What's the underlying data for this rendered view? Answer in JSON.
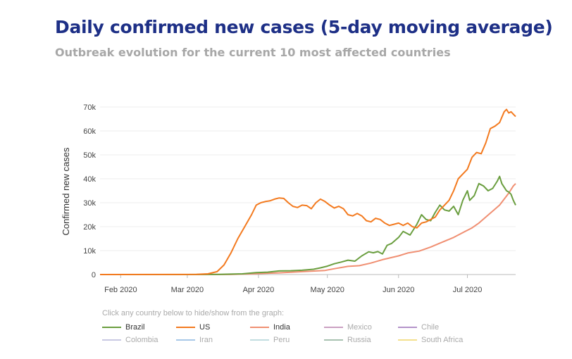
{
  "title": "Daily confirmed new cases (5-day moving average)",
  "subtitle": "Outbreak evolution for the current 10 most affected countries",
  "hint": "Click any country below to hide/show from the graph:",
  "chart_data": {
    "type": "line",
    "ylabel": "Confirmed new cases",
    "xlabel": "",
    "ylim": [
      0,
      70000
    ],
    "y_ticks": [
      "0",
      "10k",
      "20k",
      "30k",
      "40k",
      "50k",
      "60k",
      "70k"
    ],
    "x_ticks": [
      "Feb 2020",
      "Mar 2020",
      "Apr 2020",
      "May 2020",
      "Jun 2020",
      "Jul 2020"
    ],
    "x_range": [
      "2020-01-23",
      "2020-07-22"
    ],
    "grid": true,
    "series": [
      {
        "name": "Brazil",
        "color": "#6a9e3f",
        "points": [
          [
            "2020-01-23",
            0
          ],
          [
            "2020-03-01",
            0
          ],
          [
            "2020-03-15",
            50
          ],
          [
            "2020-03-25",
            300
          ],
          [
            "2020-03-31",
            800
          ],
          [
            "2020-04-05",
            1000
          ],
          [
            "2020-04-10",
            1500
          ],
          [
            "2020-04-15",
            1600
          ],
          [
            "2020-04-20",
            1800
          ],
          [
            "2020-04-25",
            2200
          ],
          [
            "2020-04-28",
            2800
          ],
          [
            "2020-05-01",
            3500
          ],
          [
            "2020-05-04",
            4500
          ],
          [
            "2020-05-07",
            5200
          ],
          [
            "2020-05-10",
            6000
          ],
          [
            "2020-05-13",
            5600
          ],
          [
            "2020-05-16",
            7800
          ],
          [
            "2020-05-19",
            9500
          ],
          [
            "2020-05-21",
            9100
          ],
          [
            "2020-05-23",
            9600
          ],
          [
            "2020-05-25",
            8600
          ],
          [
            "2020-05-27",
            12200
          ],
          [
            "2020-05-29",
            13000
          ],
          [
            "2020-06-01",
            15500
          ],
          [
            "2020-06-03",
            18000
          ],
          [
            "2020-06-06",
            16500
          ],
          [
            "2020-06-09",
            21000
          ],
          [
            "2020-06-11",
            25000
          ],
          [
            "2020-06-13",
            23000
          ],
          [
            "2020-06-15",
            22500
          ],
          [
            "2020-06-17",
            26000
          ],
          [
            "2020-06-19",
            29000
          ],
          [
            "2020-06-21",
            27000
          ],
          [
            "2020-06-23",
            26500
          ],
          [
            "2020-06-25",
            28500
          ],
          [
            "2020-06-27",
            25000
          ],
          [
            "2020-06-29",
            31000
          ],
          [
            "2020-07-01",
            35000
          ],
          [
            "2020-07-02",
            31000
          ],
          [
            "2020-07-04",
            33000
          ],
          [
            "2020-07-06",
            38000
          ],
          [
            "2020-07-08",
            37000
          ],
          [
            "2020-07-10",
            35000
          ],
          [
            "2020-07-12",
            36000
          ],
          [
            "2020-07-14",
            39000
          ],
          [
            "2020-07-15",
            41000
          ],
          [
            "2020-07-16",
            38000
          ],
          [
            "2020-07-17",
            36500
          ],
          [
            "2020-07-18",
            35000
          ],
          [
            "2020-07-19",
            34500
          ],
          [
            "2020-07-20",
            33500
          ],
          [
            "2020-07-21",
            31000
          ],
          [
            "2020-07-22",
            29000
          ]
        ]
      },
      {
        "name": "US",
        "color": "#f37a1f",
        "points": [
          [
            "2020-01-23",
            0
          ],
          [
            "2020-03-05",
            50
          ],
          [
            "2020-03-10",
            300
          ],
          [
            "2020-03-14",
            1200
          ],
          [
            "2020-03-17",
            4000
          ],
          [
            "2020-03-20",
            9000
          ],
          [
            "2020-03-23",
            15000
          ],
          [
            "2020-03-26",
            20000
          ],
          [
            "2020-03-29",
            25000
          ],
          [
            "2020-03-31",
            29000
          ],
          [
            "2020-04-02",
            30000
          ],
          [
            "2020-04-04",
            30500
          ],
          [
            "2020-04-06",
            30800
          ],
          [
            "2020-04-08",
            31500
          ],
          [
            "2020-04-10",
            32000
          ],
          [
            "2020-04-12",
            31800
          ],
          [
            "2020-04-14",
            30000
          ],
          [
            "2020-04-16",
            28500
          ],
          [
            "2020-04-18",
            28000
          ],
          [
            "2020-04-20",
            29000
          ],
          [
            "2020-04-22",
            28800
          ],
          [
            "2020-04-24",
            27500
          ],
          [
            "2020-04-26",
            30000
          ],
          [
            "2020-04-28",
            31500
          ],
          [
            "2020-04-30",
            30500
          ],
          [
            "2020-05-02",
            29000
          ],
          [
            "2020-05-04",
            27800
          ],
          [
            "2020-05-06",
            28500
          ],
          [
            "2020-05-08",
            27500
          ],
          [
            "2020-05-10",
            25000
          ],
          [
            "2020-05-12",
            24500
          ],
          [
            "2020-05-14",
            25500
          ],
          [
            "2020-05-16",
            24500
          ],
          [
            "2020-05-18",
            22500
          ],
          [
            "2020-05-20",
            22000
          ],
          [
            "2020-05-22",
            23500
          ],
          [
            "2020-05-24",
            23000
          ],
          [
            "2020-05-26",
            21500
          ],
          [
            "2020-05-28",
            20500
          ],
          [
            "2020-05-30",
            21000
          ],
          [
            "2020-06-01",
            21500
          ],
          [
            "2020-06-03",
            20500
          ],
          [
            "2020-06-05",
            21500
          ],
          [
            "2020-06-07",
            20000
          ],
          [
            "2020-06-09",
            19500
          ],
          [
            "2020-06-11",
            21500
          ],
          [
            "2020-06-13",
            22000
          ],
          [
            "2020-06-15",
            23000
          ],
          [
            "2020-06-17",
            24000
          ],
          [
            "2020-06-19",
            27000
          ],
          [
            "2020-06-21",
            29000
          ],
          [
            "2020-06-23",
            31000
          ],
          [
            "2020-06-25",
            35000
          ],
          [
            "2020-06-27",
            40000
          ],
          [
            "2020-06-29",
            42000
          ],
          [
            "2020-07-01",
            44000
          ],
          [
            "2020-07-03",
            49000
          ],
          [
            "2020-07-05",
            51000
          ],
          [
            "2020-07-07",
            50500
          ],
          [
            "2020-07-09",
            55000
          ],
          [
            "2020-07-11",
            61000
          ],
          [
            "2020-07-13",
            62000
          ],
          [
            "2020-07-15",
            63500
          ],
          [
            "2020-07-17",
            68000
          ],
          [
            "2020-07-18",
            69000
          ],
          [
            "2020-07-19",
            67500
          ],
          [
            "2020-07-20",
            68000
          ],
          [
            "2020-07-21",
            67000
          ],
          [
            "2020-07-22",
            66000
          ]
        ]
      },
      {
        "name": "India",
        "color": "#f08f72",
        "points": [
          [
            "2020-01-23",
            0
          ],
          [
            "2020-03-20",
            20
          ],
          [
            "2020-04-01",
            400
          ],
          [
            "2020-04-10",
            700
          ],
          [
            "2020-04-20",
            1200
          ],
          [
            "2020-04-30",
            1700
          ],
          [
            "2020-05-05",
            2600
          ],
          [
            "2020-05-10",
            3400
          ],
          [
            "2020-05-15",
            3700
          ],
          [
            "2020-05-20",
            4800
          ],
          [
            "2020-05-25",
            6200
          ],
          [
            "2020-06-01",
            7800
          ],
          [
            "2020-06-05",
            9000
          ],
          [
            "2020-06-10",
            9800
          ],
          [
            "2020-06-15",
            11500
          ],
          [
            "2020-06-20",
            13500
          ],
          [
            "2020-06-25",
            15500
          ],
          [
            "2020-06-30",
            18000
          ],
          [
            "2020-07-03",
            19500
          ],
          [
            "2020-07-06",
            21500
          ],
          [
            "2020-07-09",
            24000
          ],
          [
            "2020-07-12",
            26500
          ],
          [
            "2020-07-15",
            29000
          ],
          [
            "2020-07-17",
            31500
          ],
          [
            "2020-07-19",
            34000
          ],
          [
            "2020-07-21",
            37000
          ],
          [
            "2020-07-22",
            38000
          ]
        ]
      }
    ],
    "legend": [
      {
        "name": "Brazil",
        "color": "#6a9e3f"
      },
      {
        "name": "US",
        "color": "#f37a1f"
      },
      {
        "name": "India",
        "color": "#f08f72"
      },
      {
        "name": "Mexico",
        "color": "#cba0c2"
      },
      {
        "name": "Chile",
        "color": "#b493c9"
      },
      {
        "name": "Colombia",
        "color": "#c9c9e3"
      },
      {
        "name": "Iran",
        "color": "#a8c8e8"
      },
      {
        "name": "Peru",
        "color": "#c2dde0"
      },
      {
        "name": "Russia",
        "color": "#a8c2b0"
      },
      {
        "name": "South Africa",
        "color": "#f3e08e"
      }
    ],
    "legend_hidden": [
      "Mexico",
      "Chile",
      "Colombia",
      "Iran",
      "Peru",
      "Russia",
      "South Africa"
    ]
  }
}
